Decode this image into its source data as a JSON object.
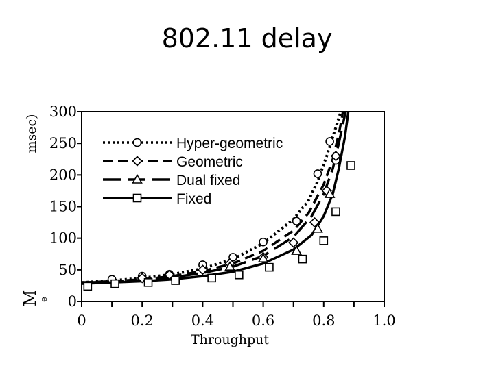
{
  "page": {
    "title": "802.11 delay"
  },
  "chart_data": {
    "type": "line",
    "title": "",
    "xlabel": "Throughput",
    "ylabel": "msec)",
    "ylabel_fragments": [
      "M",
      "e"
    ],
    "xlim": [
      0,
      1.0
    ],
    "ylim": [
      0,
      300
    ],
    "x_ticks": [
      "0",
      "0.2",
      "0.4",
      "0.6",
      "0.8",
      "1.0"
    ],
    "y_ticks": [
      "0",
      "50",
      "100",
      "150",
      "200",
      "250",
      "300"
    ],
    "grid": false,
    "legend_position": "top-left",
    "series": [
      {
        "name": "Hyper-geometric",
        "line_style": "dotted",
        "marker": "circle",
        "curve_x": [
          0,
          0.1,
          0.2,
          0.3,
          0.4,
          0.5,
          0.6,
          0.7,
          0.75,
          0.78,
          0.81,
          0.83,
          0.85,
          0.86,
          0.87
        ],
        "curve_y": [
          30,
          33,
          37,
          43,
          52,
          67,
          92,
          130,
          160,
          190,
          230,
          260,
          290,
          305,
          320
        ],
        "x": [
          0.1,
          0.2,
          0.29,
          0.4,
          0.5,
          0.6,
          0.71,
          0.78,
          0.82,
          0.84
        ],
        "y": [
          35,
          40,
          43,
          58,
          70,
          94,
          127,
          202,
          253,
          223
        ]
      },
      {
        "name": "Geometric",
        "line_style": "dashed",
        "marker": "diamond",
        "curve_x": [
          0,
          0.1,
          0.2,
          0.3,
          0.4,
          0.5,
          0.6,
          0.7,
          0.75,
          0.8,
          0.83,
          0.85,
          0.86,
          0.87
        ],
        "curve_y": [
          30,
          32,
          35,
          40,
          48,
          60,
          80,
          112,
          140,
          185,
          225,
          265,
          290,
          320
        ],
        "x": [
          0.2,
          0.29,
          0.4,
          0.49,
          0.6,
          0.7,
          0.77,
          0.81,
          0.84
        ],
        "y": [
          37,
          42,
          50,
          60,
          70,
          93,
          125,
          175,
          230
        ]
      },
      {
        "name": "Dual fixed",
        "line_style": "long-dashed",
        "marker": "triangle",
        "curve_x": [
          0,
          0.1,
          0.2,
          0.3,
          0.4,
          0.5,
          0.6,
          0.7,
          0.76,
          0.8,
          0.83,
          0.85,
          0.87,
          0.88
        ],
        "curve_y": [
          30,
          31,
          34,
          38,
          45,
          55,
          72,
          102,
          135,
          170,
          210,
          250,
          295,
          320
        ],
        "x": [
          0.49,
          0.6,
          0.71,
          0.78,
          0.82
        ],
        "y": [
          55,
          68,
          80,
          115,
          170
        ]
      },
      {
        "name": "Fixed",
        "line_style": "solid",
        "marker": "square",
        "curve_x": [
          0,
          0.1,
          0.2,
          0.3,
          0.4,
          0.5,
          0.6,
          0.7,
          0.76,
          0.8,
          0.83,
          0.85,
          0.87,
          0.88,
          0.885
        ],
        "curve_y": [
          28,
          30,
          32,
          35,
          40,
          47,
          60,
          82,
          105,
          135,
          170,
          210,
          260,
          295,
          320
        ],
        "x": [
          0.02,
          0.11,
          0.22,
          0.31,
          0.43,
          0.52,
          0.62,
          0.73,
          0.8,
          0.84,
          0.89
        ],
        "y": [
          24,
          28,
          30,
          33,
          37,
          42,
          54,
          67,
          96,
          142,
          215
        ]
      }
    ]
  }
}
